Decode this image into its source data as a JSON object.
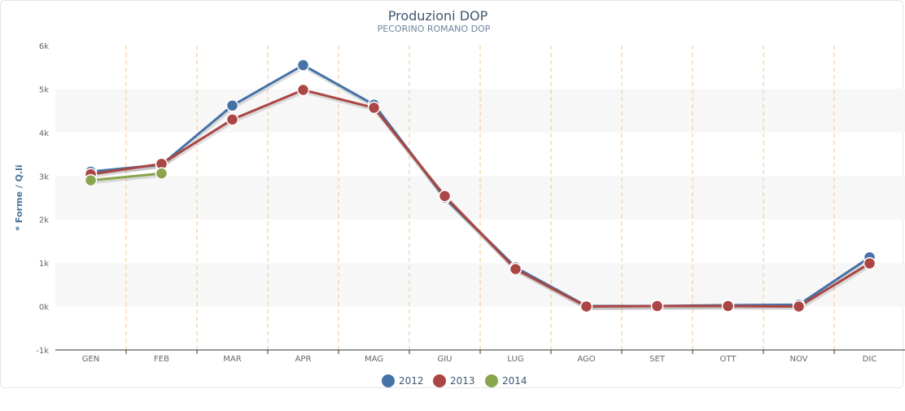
{
  "chart_data": {
    "type": "line",
    "title": "Produzioni DOP",
    "subtitle": "PECORINO ROMANO DOP",
    "xlabel": "",
    "ylabel": "* Forme / Q.li",
    "categories": [
      "GEN",
      "FEB",
      "MAR",
      "APR",
      "MAG",
      "GIU",
      "LUG",
      "AGO",
      "SET",
      "OTT",
      "NOV",
      "DIC"
    ],
    "yticks": [
      "-1k",
      "0k",
      "1k",
      "2k",
      "3k",
      "4k",
      "5k",
      "6k"
    ],
    "ylim": [
      -1000,
      6000
    ],
    "grid": "alternate horizontal bands, dashed vertical category separators",
    "legend": "bottom-center",
    "series": [
      {
        "name": "2012",
        "color": "#4572a7",
        "values": [
          3100,
          3260,
          4620,
          5550,
          4640,
          2500,
          900,
          10,
          10,
          30,
          40,
          1130
        ]
      },
      {
        "name": "2013",
        "color": "#aa4643",
        "values": [
          3040,
          3280,
          4300,
          4980,
          4570,
          2540,
          860,
          0,
          10,
          10,
          0,
          990
        ]
      },
      {
        "name": "2014",
        "color": "#89a54e",
        "values": [
          2900,
          3060,
          null,
          null,
          null,
          null,
          null,
          null,
          null,
          null,
          null,
          null
        ]
      }
    ]
  }
}
